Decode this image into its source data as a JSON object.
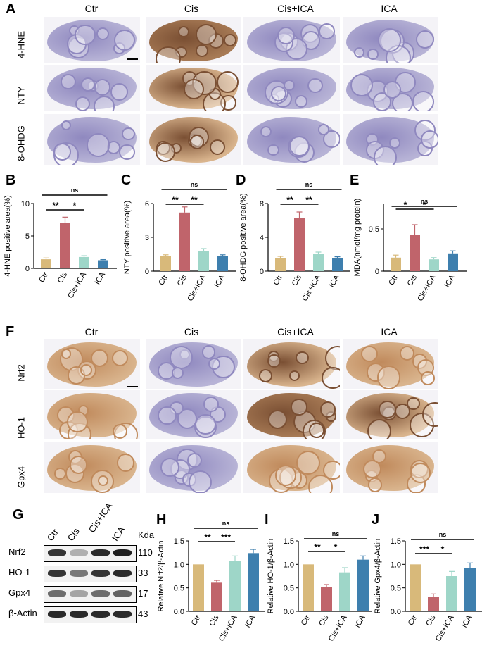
{
  "panel_letters": [
    "A",
    "B",
    "C",
    "D",
    "E",
    "F",
    "G",
    "H",
    "I",
    "J"
  ],
  "panelA": {
    "columns": [
      "Ctr",
      "Cis",
      "Cis+ICA",
      "ICA"
    ],
    "rows": [
      "4-HNE",
      "NTY",
      "8-OHDG"
    ]
  },
  "panelF": {
    "columns": [
      "Ctr",
      "Cis",
      "Cis+ICA",
      "ICA"
    ],
    "rows": [
      "Nrf2",
      "HO-1",
      "Gpx4"
    ]
  },
  "panelG": {
    "lanes": [
      "Ctr",
      "Cis",
      "Cis+ICA",
      "ICA"
    ],
    "kda_header": "Kda",
    "proteins": [
      {
        "name": "Nrf2",
        "kda": "110",
        "intensity": [
          0.85,
          0.3,
          0.9,
          0.95
        ]
      },
      {
        "name": "HO-1",
        "kda": "33",
        "intensity": [
          0.85,
          0.55,
          0.85,
          0.9
        ]
      },
      {
        "name": "Gpx4",
        "kda": "17",
        "intensity": [
          0.6,
          0.35,
          0.6,
          0.65
        ]
      },
      {
        "name": "β-Actin",
        "kda": "43",
        "intensity": [
          0.9,
          0.9,
          0.9,
          0.9
        ]
      }
    ]
  },
  "colors": {
    "Ctr": "#d8b97a",
    "Cis": "#c0646b",
    "Cis+ICA": "#9ed6c8",
    "ICA": "#3e7fae"
  },
  "chart_data": [
    {
      "id": "B",
      "type": "bar",
      "categories": [
        "Ctr",
        "Cis",
        "Cis+ICA",
        "ICA"
      ],
      "values": [
        1.4,
        7.0,
        1.75,
        1.25
      ],
      "errors": [
        0.2,
        0.9,
        0.2,
        0.1
      ],
      "ylabel": "4-HNE positive area(%)",
      "ylim": [
        0,
        10
      ],
      "yticks": [
        "0",
        "5",
        "10"
      ],
      "sig": [
        {
          "from": 0,
          "to": 1,
          "label": "**",
          "level": 1
        },
        {
          "from": 1,
          "to": 2,
          "label": "*",
          "level": 1
        },
        {
          "from": 0,
          "to": 3,
          "label": "ns",
          "level": 2
        }
      ]
    },
    {
      "id": "C",
      "type": "bar",
      "categories": [
        "Ctr",
        "Cis",
        "Cis+ICA",
        "ICA"
      ],
      "values": [
        1.35,
        5.2,
        1.8,
        1.35
      ],
      "errors": [
        0.1,
        0.5,
        0.2,
        0.1
      ],
      "ylabel": "NTY positive area(%)",
      "ylim": [
        0,
        6
      ],
      "yticks": [
        "0",
        "3",
        "6"
      ],
      "sig": [
        {
          "from": 0,
          "to": 1,
          "label": "**",
          "level": 1
        },
        {
          "from": 1,
          "to": 2,
          "label": "**",
          "level": 1
        },
        {
          "from": 0,
          "to": 3,
          "label": "ns",
          "level": 2
        }
      ]
    },
    {
      "id": "D",
      "type": "bar",
      "categories": [
        "Ctr",
        "Cis",
        "Cis+ICA",
        "ICA"
      ],
      "values": [
        1.5,
        6.3,
        2.05,
        1.55
      ],
      "errors": [
        0.25,
        0.7,
        0.2,
        0.15
      ],
      "ylabel": "8-OHDG positive area(%)",
      "ylim": [
        0,
        8
      ],
      "yticks": [
        "0",
        "4",
        "8"
      ],
      "sig": [
        {
          "from": 0,
          "to": 1,
          "label": "**",
          "level": 1
        },
        {
          "from": 1,
          "to": 2,
          "label": "**",
          "level": 1
        },
        {
          "from": 0,
          "to": 3,
          "label": "ns",
          "level": 2
        }
      ]
    },
    {
      "id": "E",
      "type": "bar",
      "categories": [
        "Ctr",
        "Cis",
        "Cis+ICA",
        "ICA"
      ],
      "values": [
        0.16,
        0.43,
        0.14,
        0.21
      ],
      "errors": [
        0.03,
        0.12,
        0.02,
        0.03
      ],
      "ylabel": "MDA(nmol/mg protein)",
      "ylim": [
        0,
        0.8
      ],
      "yticks": [
        "0",
        "0.5"
      ],
      "ytickvals": [
        0,
        0.5
      ],
      "sig": [
        {
          "from": 0,
          "to": 1,
          "label": "*",
          "level": 1
        },
        {
          "from": 1,
          "to": 2,
          "label": "*",
          "level": 1
        },
        {
          "from": 0,
          "to": 3,
          "label": "ns",
          "level": 2
        }
      ]
    },
    {
      "id": "H",
      "type": "bar",
      "categories": [
        "Ctr",
        "Cis",
        "Cis+ICA",
        "ICA"
      ],
      "values": [
        1.0,
        0.61,
        1.08,
        1.24
      ],
      "errors": [
        0.0,
        0.05,
        0.1,
        0.08
      ],
      "ylabel": "Relative Nrf2/β-Actin",
      "ylim": [
        0,
        1.5
      ],
      "yticks": [
        "0.0",
        "0.5",
        "1.0",
        "1.5"
      ],
      "sig": [
        {
          "from": 0,
          "to": 1,
          "label": "**",
          "level": 1
        },
        {
          "from": 1,
          "to": 2,
          "label": "***",
          "level": 1
        },
        {
          "from": 0,
          "to": 3,
          "label": "ns",
          "level": 2
        }
      ]
    },
    {
      "id": "I",
      "type": "bar",
      "categories": [
        "Ctr",
        "Cis",
        "Cis+ICA",
        "ICA"
      ],
      "values": [
        1.0,
        0.52,
        0.83,
        1.1
      ],
      "errors": [
        0.0,
        0.05,
        0.1,
        0.08
      ],
      "ylabel": "Relative HO-1/β-Actin",
      "ylim": [
        0,
        1.5
      ],
      "yticks": [
        "0.0",
        "0.5",
        "1.0",
        "1.5"
      ],
      "sig": [
        {
          "from": 0,
          "to": 1,
          "label": "**",
          "level": 1
        },
        {
          "from": 1,
          "to": 2,
          "label": "*",
          "level": 1
        },
        {
          "from": 0,
          "to": 3,
          "label": "ns",
          "level": 2
        }
      ]
    },
    {
      "id": "J",
      "type": "bar",
      "categories": [
        "Ctr",
        "Cis",
        "Cis+ICA",
        "ICA"
      ],
      "values": [
        1.0,
        0.31,
        0.75,
        0.93
      ],
      "errors": [
        0.0,
        0.06,
        0.1,
        0.1
      ],
      "ylabel": "Relative Gpx4/β-Actin",
      "ylim": [
        0,
        1.5
      ],
      "yticks": [
        "0.0",
        "0.5",
        "1.0",
        "1.5"
      ],
      "sig": [
        {
          "from": 0,
          "to": 1,
          "label": "***",
          "level": 1
        },
        {
          "from": 1,
          "to": 2,
          "label": "*",
          "level": 1
        },
        {
          "from": 0,
          "to": 3,
          "label": "ns",
          "level": 2
        }
      ]
    }
  ]
}
